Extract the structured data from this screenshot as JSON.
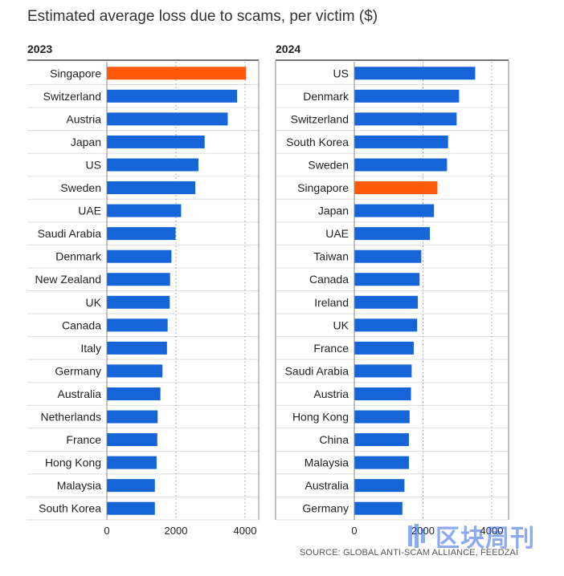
{
  "title": "Estimated average loss due to scams, per victim ($)",
  "source": "SOURCE: GLOBAL ANTI-SCAM ALLIANCE, FEEDZAI",
  "watermark_text": "区块周刊",
  "colors": {
    "bar": "#1565d8",
    "highlight": "#ff5a0a",
    "grid": "#9a9a9a",
    "divider": "#dddddd"
  },
  "chart_data": [
    {
      "type": "bar",
      "orientation": "horizontal",
      "title": "2023",
      "categories": [
        "Singapore",
        "Switzerland",
        "Austria",
        "Japan",
        "US",
        "Sweden",
        "UAE",
        "Saudi Arabia",
        "Denmark",
        "New Zealand",
        "UK",
        "Canada",
        "Italy",
        "Germany",
        "Australia",
        "Netherlands",
        "France",
        "Hong Kong",
        "Malaysia",
        "South Korea"
      ],
      "values": [
        4031,
        3770,
        3500,
        2830,
        2650,
        2560,
        2150,
        1990,
        1870,
        1830,
        1820,
        1760,
        1740,
        1610,
        1550,
        1470,
        1460,
        1440,
        1390,
        1390
      ],
      "highlight": "Singapore",
      "xlim": [
        0,
        4400
      ],
      "xticks": [
        0,
        2000,
        4000
      ],
      "xtick_labels": [
        "0",
        "2000",
        "4000"
      ],
      "grid": true
    },
    {
      "type": "bar",
      "orientation": "horizontal",
      "title": "2024",
      "categories": [
        "US",
        "Denmark",
        "Switzerland",
        "South Korea",
        "Sweden",
        "Singapore",
        "Japan",
        "UAE",
        "Taiwan",
        "Canada",
        "Ireland",
        "UK",
        "France",
        "Saudi Arabia",
        "Austria",
        "Hong Kong",
        "China",
        "Malaysia",
        "Australia",
        "Germany"
      ],
      "values": [
        3520,
        3050,
        2980,
        2730,
        2700,
        2420,
        2320,
        2200,
        1950,
        1900,
        1850,
        1830,
        1730,
        1670,
        1650,
        1610,
        1590,
        1590,
        1460,
        1400
      ],
      "highlight": "Singapore",
      "xlim": [
        0,
        4350
      ],
      "xticks": [
        0,
        2000,
        4000
      ],
      "xtick_labels": [
        "0",
        "2000",
        "4000"
      ],
      "grid": true
    }
  ]
}
